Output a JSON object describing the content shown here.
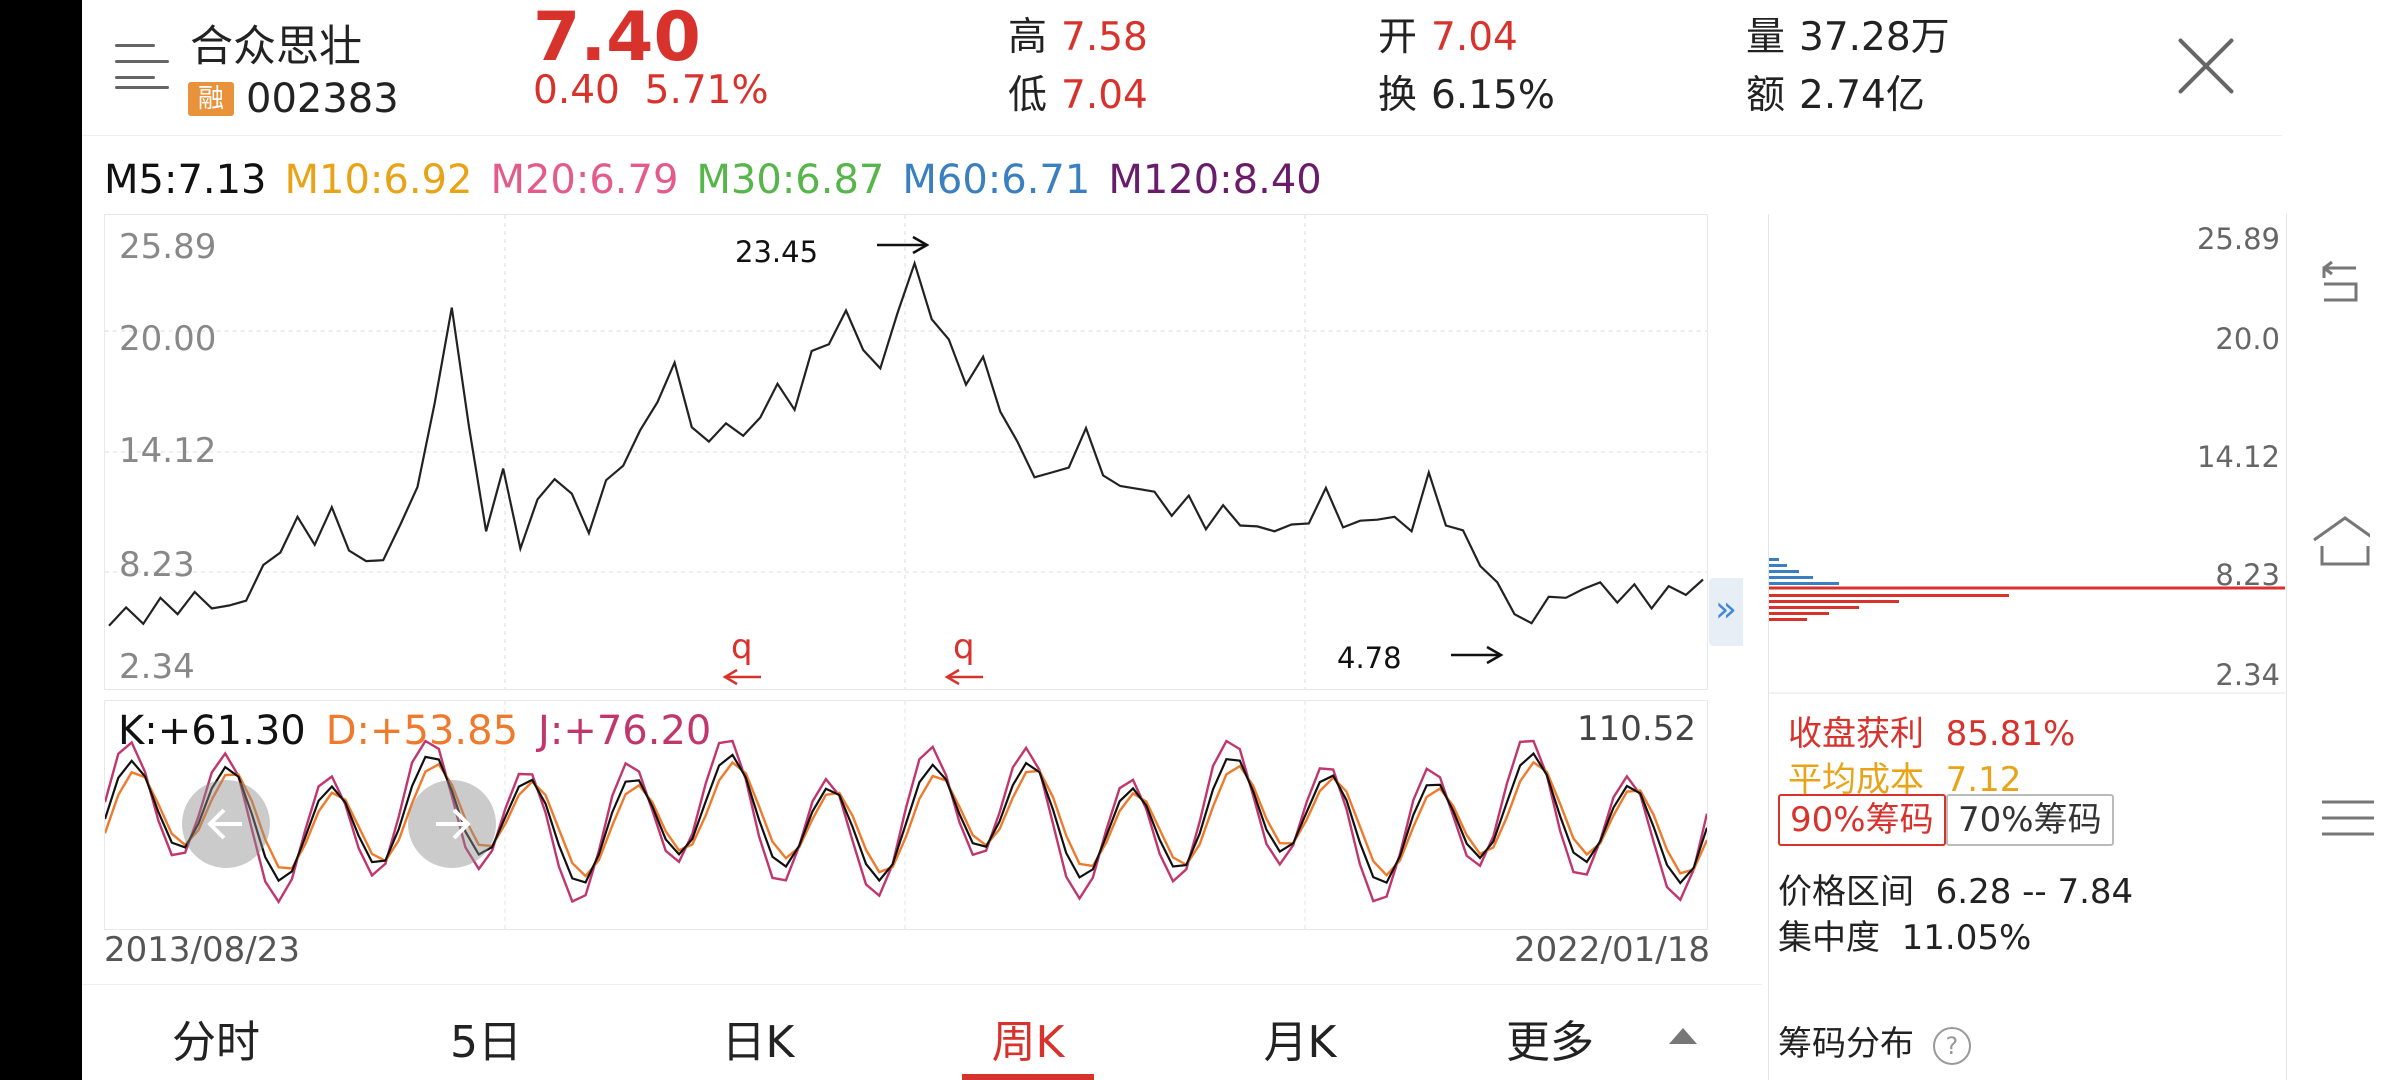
{
  "stock": {
    "name": "合众思壮",
    "badge": "融",
    "code": "002383",
    "price": "7.40",
    "change": "0.40",
    "change_pct": "5.71%"
  },
  "stats": {
    "high_label": "高",
    "high": "7.58",
    "low_label": "低",
    "low": "7.04",
    "open_label": "开",
    "open": "7.04",
    "turnover_label": "换",
    "turnover": "6.15%",
    "volume_label": "量",
    "volume": "37.28万",
    "amount_label": "额",
    "amount": "2.74亿"
  },
  "ma": [
    {
      "label": "M5:7.13",
      "color": "#111111"
    },
    {
      "label": "M10:6.92",
      "color": "#e8a317"
    },
    {
      "label": "M20:6.79",
      "color": "#e45a88"
    },
    {
      "label": "M30:6.87",
      "color": "#57b64a"
    },
    {
      "label": "M60:6.71",
      "color": "#3a80c0"
    },
    {
      "label": "M120:8.40",
      "color": "#6a1b6a"
    }
  ],
  "price_chart": {
    "y_ticks": [
      "25.89",
      "20.00",
      "14.12",
      "8.23",
      "2.34"
    ],
    "high_annotation": "23.45",
    "low_annotation": "4.78",
    "q_markers": [
      "q",
      "q"
    ]
  },
  "kdj": {
    "k": "K:+61.30",
    "d": "D:+53.85",
    "j": "J:+76.20",
    "max": "110.52",
    "colors": {
      "k": "#111111",
      "d": "#f07a2b",
      "j": "#c2366e"
    }
  },
  "dates": {
    "start": "2013/08/23",
    "end": "2022/01/18"
  },
  "tabs": [
    "分时",
    "5日",
    "日K",
    "周K",
    "月K",
    "更多"
  ],
  "active_tab": "周K",
  "chips": {
    "y_ticks": [
      "25.89",
      "20.0",
      "14.12",
      "8.23",
      "2.34"
    ],
    "profit_label": "收盘获利",
    "profit": "85.81%",
    "avg_cost_label": "平均成本",
    "avg_cost": "7.12",
    "btn90": "90%筹码",
    "btn70": "70%筹码",
    "range_label": "价格区间",
    "range": "6.28 -- 7.84",
    "concentration_label": "集中度",
    "concentration": "11.05%",
    "title": "筹码分布",
    "help": "?"
  },
  "chart_data": {
    "type": "line",
    "title": "",
    "xlabel": "",
    "ylabel": "",
    "x_range": [
      "2013/08/23",
      "2022/01/18"
    ],
    "ylim": [
      2.34,
      25.89
    ],
    "series": [
      {
        "values": [
          5.0,
          5.6,
          5.4,
          6.1,
          5.9,
          6.4,
          6.2,
          5.7,
          6.6,
          7.8,
          9.1,
          10.3,
          9.5,
          10.8,
          9.2,
          8.0,
          8.7,
          9.9,
          12.5,
          16.2,
          21.8,
          15.0,
          10.2,
          12.8,
          9.3,
          11.2,
          12.9,
          11.5,
          10.1,
          12.2,
          13.6,
          14.8,
          16.9,
          18.3,
          15.6,
          14.2,
          15.8,
          14.5,
          16.1,
          17.2,
          16.5,
          18.9,
          19.9,
          21.0,
          19.6,
          18.0,
          21.5,
          23.45,
          21.2,
          19.5,
          17.8,
          18.6,
          16.4,
          14.2,
          13.0,
          12.6,
          13.5,
          14.9,
          13.1,
          11.9,
          12.4,
          11.6,
          11.0,
          11.4,
          10.3,
          10.9,
          10.5,
          9.8,
          10.2,
          9.9,
          10.6,
          11.8,
          10.4,
          10.1,
          10.8,
          10.3,
          10.2,
          12.6,
          10.5,
          9.6,
          8.4,
          6.9,
          5.9,
          4.78,
          6.8,
          6.1,
          7.2,
          6.9,
          6.5,
          6.8,
          6.2,
          6.7,
          6.9,
          7.4
        ]
      }
    ]
  }
}
